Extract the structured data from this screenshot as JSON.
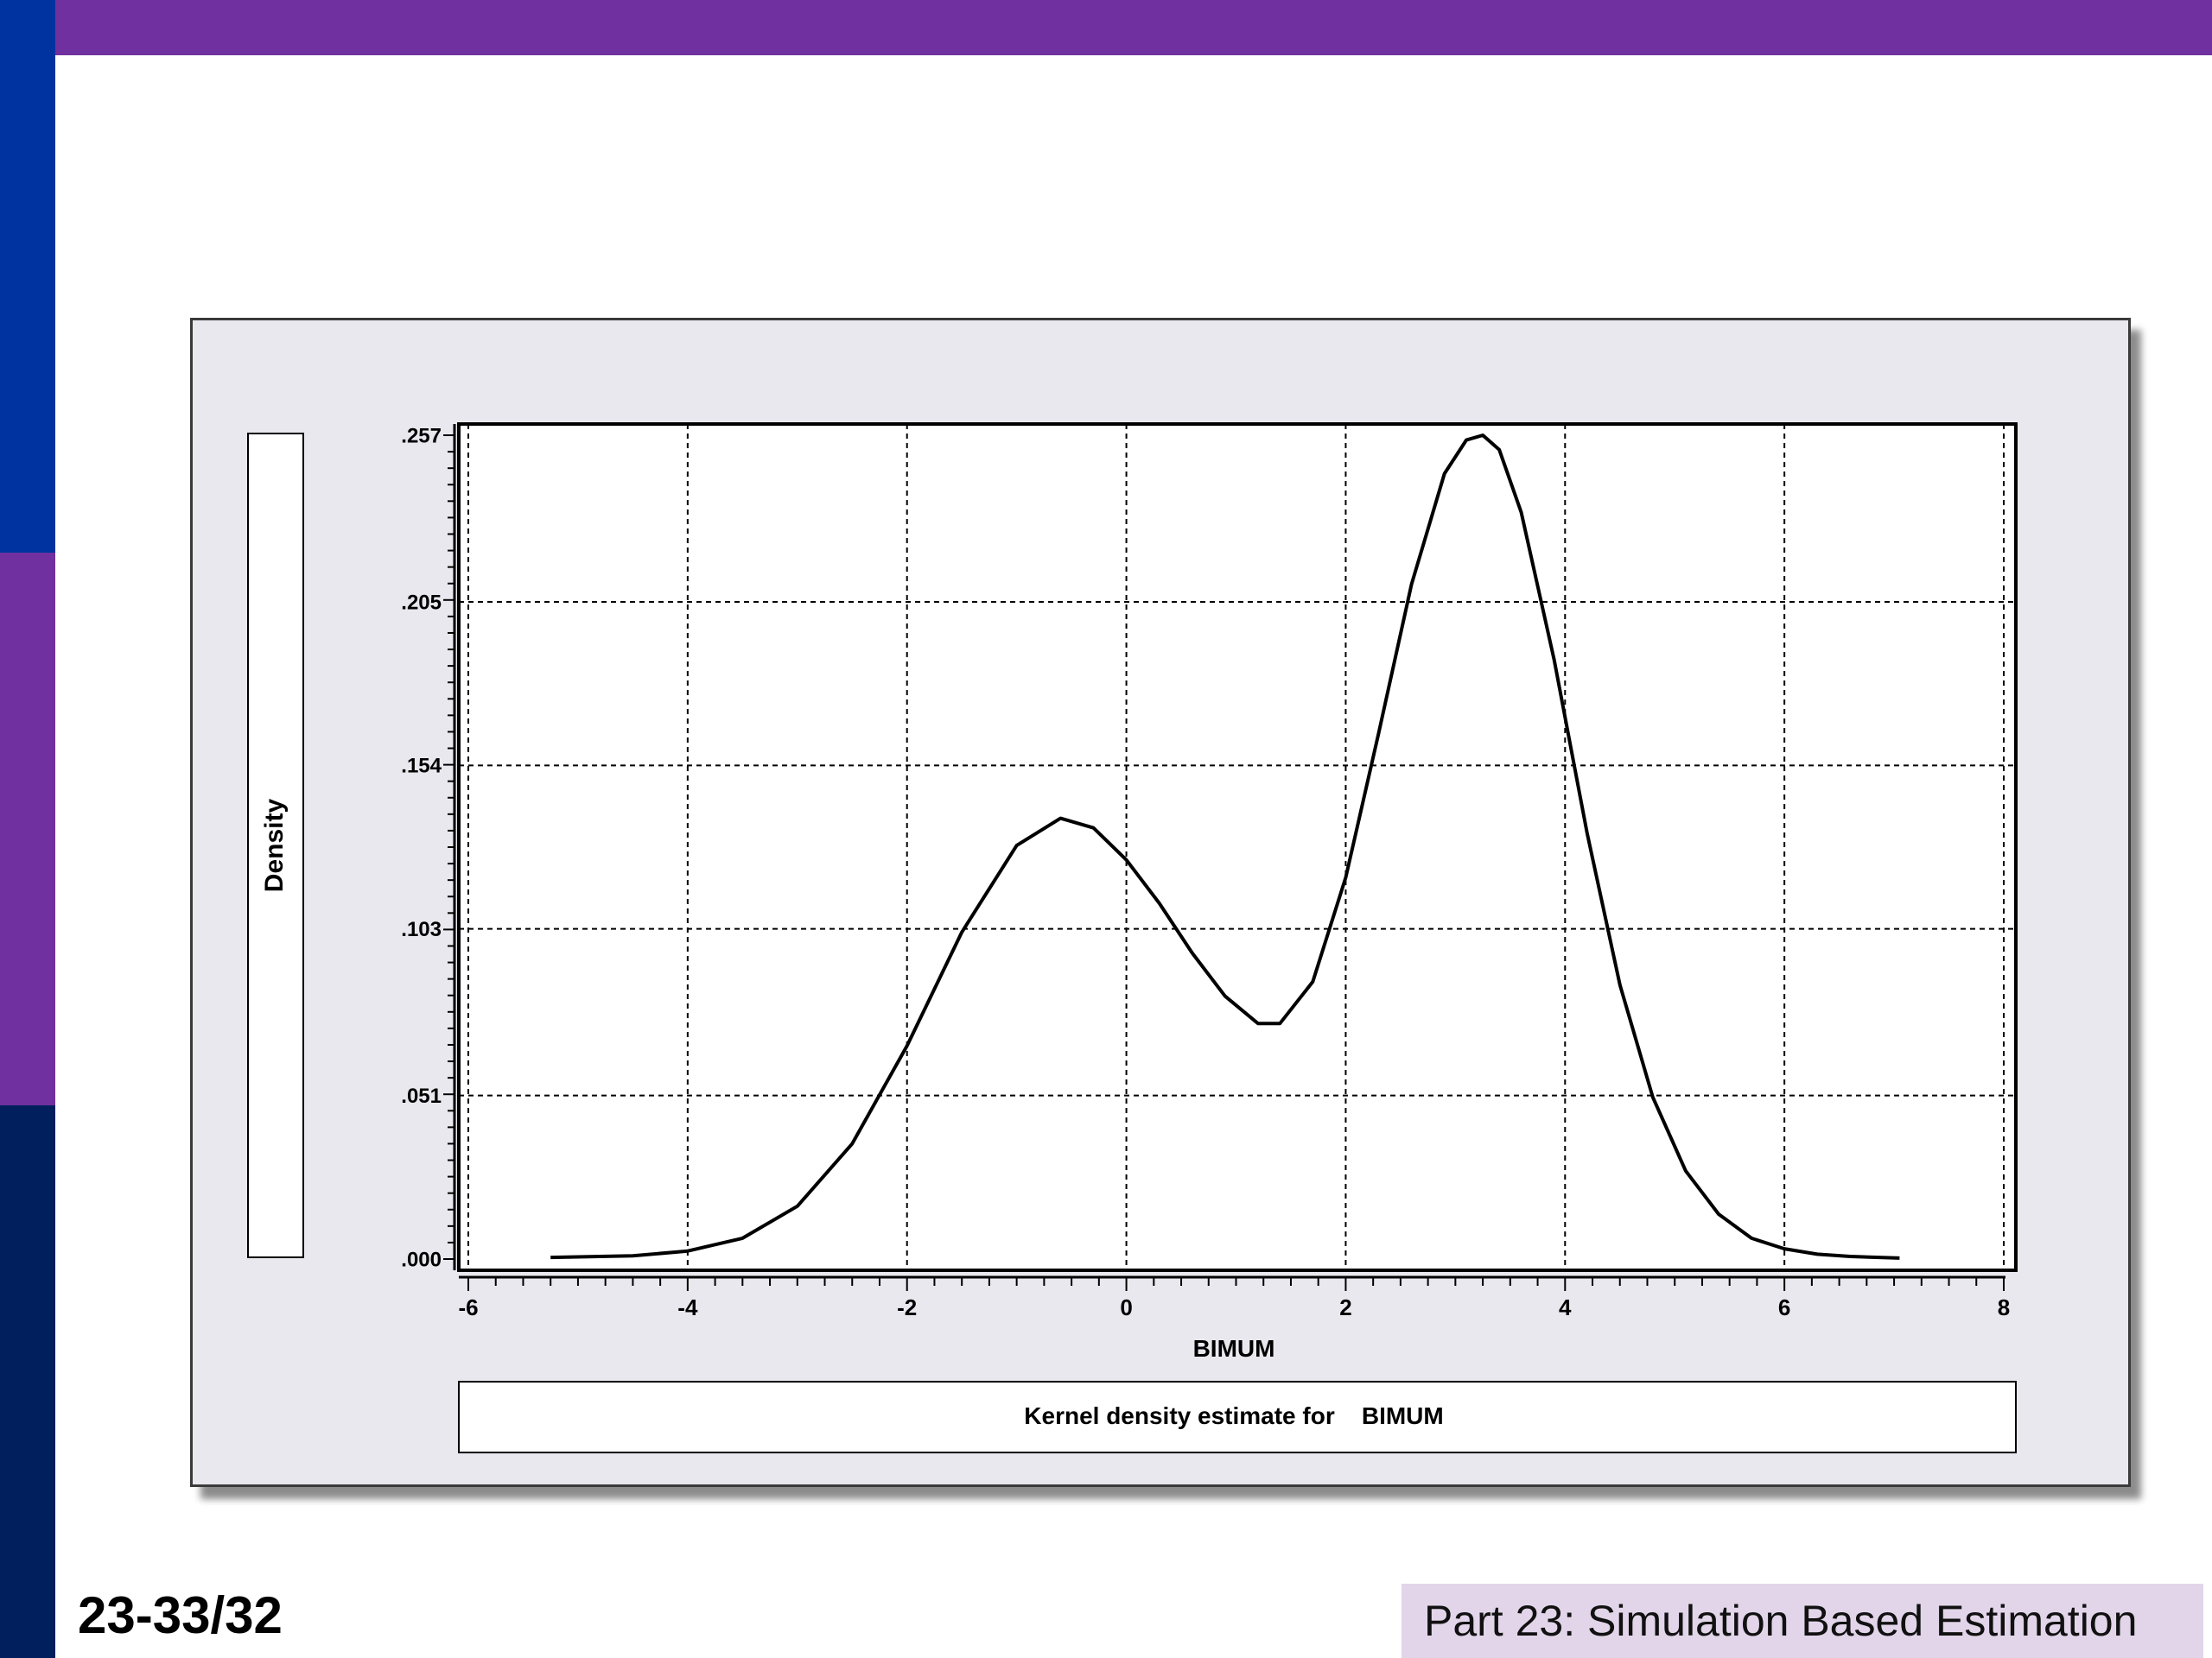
{
  "colors": {
    "top_bar": "#7030a0",
    "sidebar": [
      "#0033a0",
      "#7030a0",
      "#001f5c"
    ],
    "panel_background": "#e9e8ee",
    "plot_background": "#ffffff",
    "curve": "#000000",
    "footer_background": "#e2d5ea"
  },
  "chart_data": {
    "type": "line",
    "title": "Kernel density estimate for    BIMUM",
    "xlabel": "BIMUM",
    "ylabel": "Density",
    "xlim": [
      -6,
      8
    ],
    "ylim": [
      0.0,
      0.257
    ],
    "x_ticks": [
      -6,
      -4,
      -2,
      0,
      2,
      4,
      6,
      8
    ],
    "x_tick_labels": [
      "-6",
      "-4",
      "-2",
      "0",
      "2",
      "4",
      "6",
      "8"
    ],
    "y_ticks": [
      0.0,
      0.051,
      0.103,
      0.154,
      0.205,
      0.257
    ],
    "y_tick_labels": [
      ".000",
      ".051",
      ".103",
      ".154",
      ".205",
      ".257"
    ],
    "grid": true,
    "series": [
      {
        "x": [
          -5.25,
          -4.5,
          -4.0,
          -3.5,
          -3.0,
          -2.5,
          -2.0,
          -1.5,
          -1.0,
          -0.6,
          -0.3,
          0.0,
          0.3,
          0.6,
          0.9,
          1.2,
          1.4,
          1.7,
          2.0,
          2.3,
          2.6,
          2.9,
          3.1,
          3.25,
          3.4,
          3.6,
          3.9,
          4.2,
          4.5,
          4.8,
          5.1,
          5.4,
          5.7,
          6.0,
          6.3,
          6.6,
          7.05
        ],
        "y": [
          0.0005,
          0.001,
          0.0025,
          0.0065,
          0.0165,
          0.036,
          0.0665,
          0.102,
          0.129,
          0.1375,
          0.1345,
          0.1245,
          0.111,
          0.0955,
          0.082,
          0.0735,
          0.0735,
          0.0865,
          0.119,
          0.164,
          0.2105,
          0.245,
          0.2555,
          0.257,
          0.2525,
          0.233,
          0.187,
          0.133,
          0.0855,
          0.0505,
          0.0275,
          0.014,
          0.0065,
          0.0032,
          0.0015,
          0.0008,
          0.0003
        ]
      }
    ]
  },
  "slide_number": "23-33/32",
  "footer": {
    "text": "Part 23: Simulation Based Estimation"
  }
}
